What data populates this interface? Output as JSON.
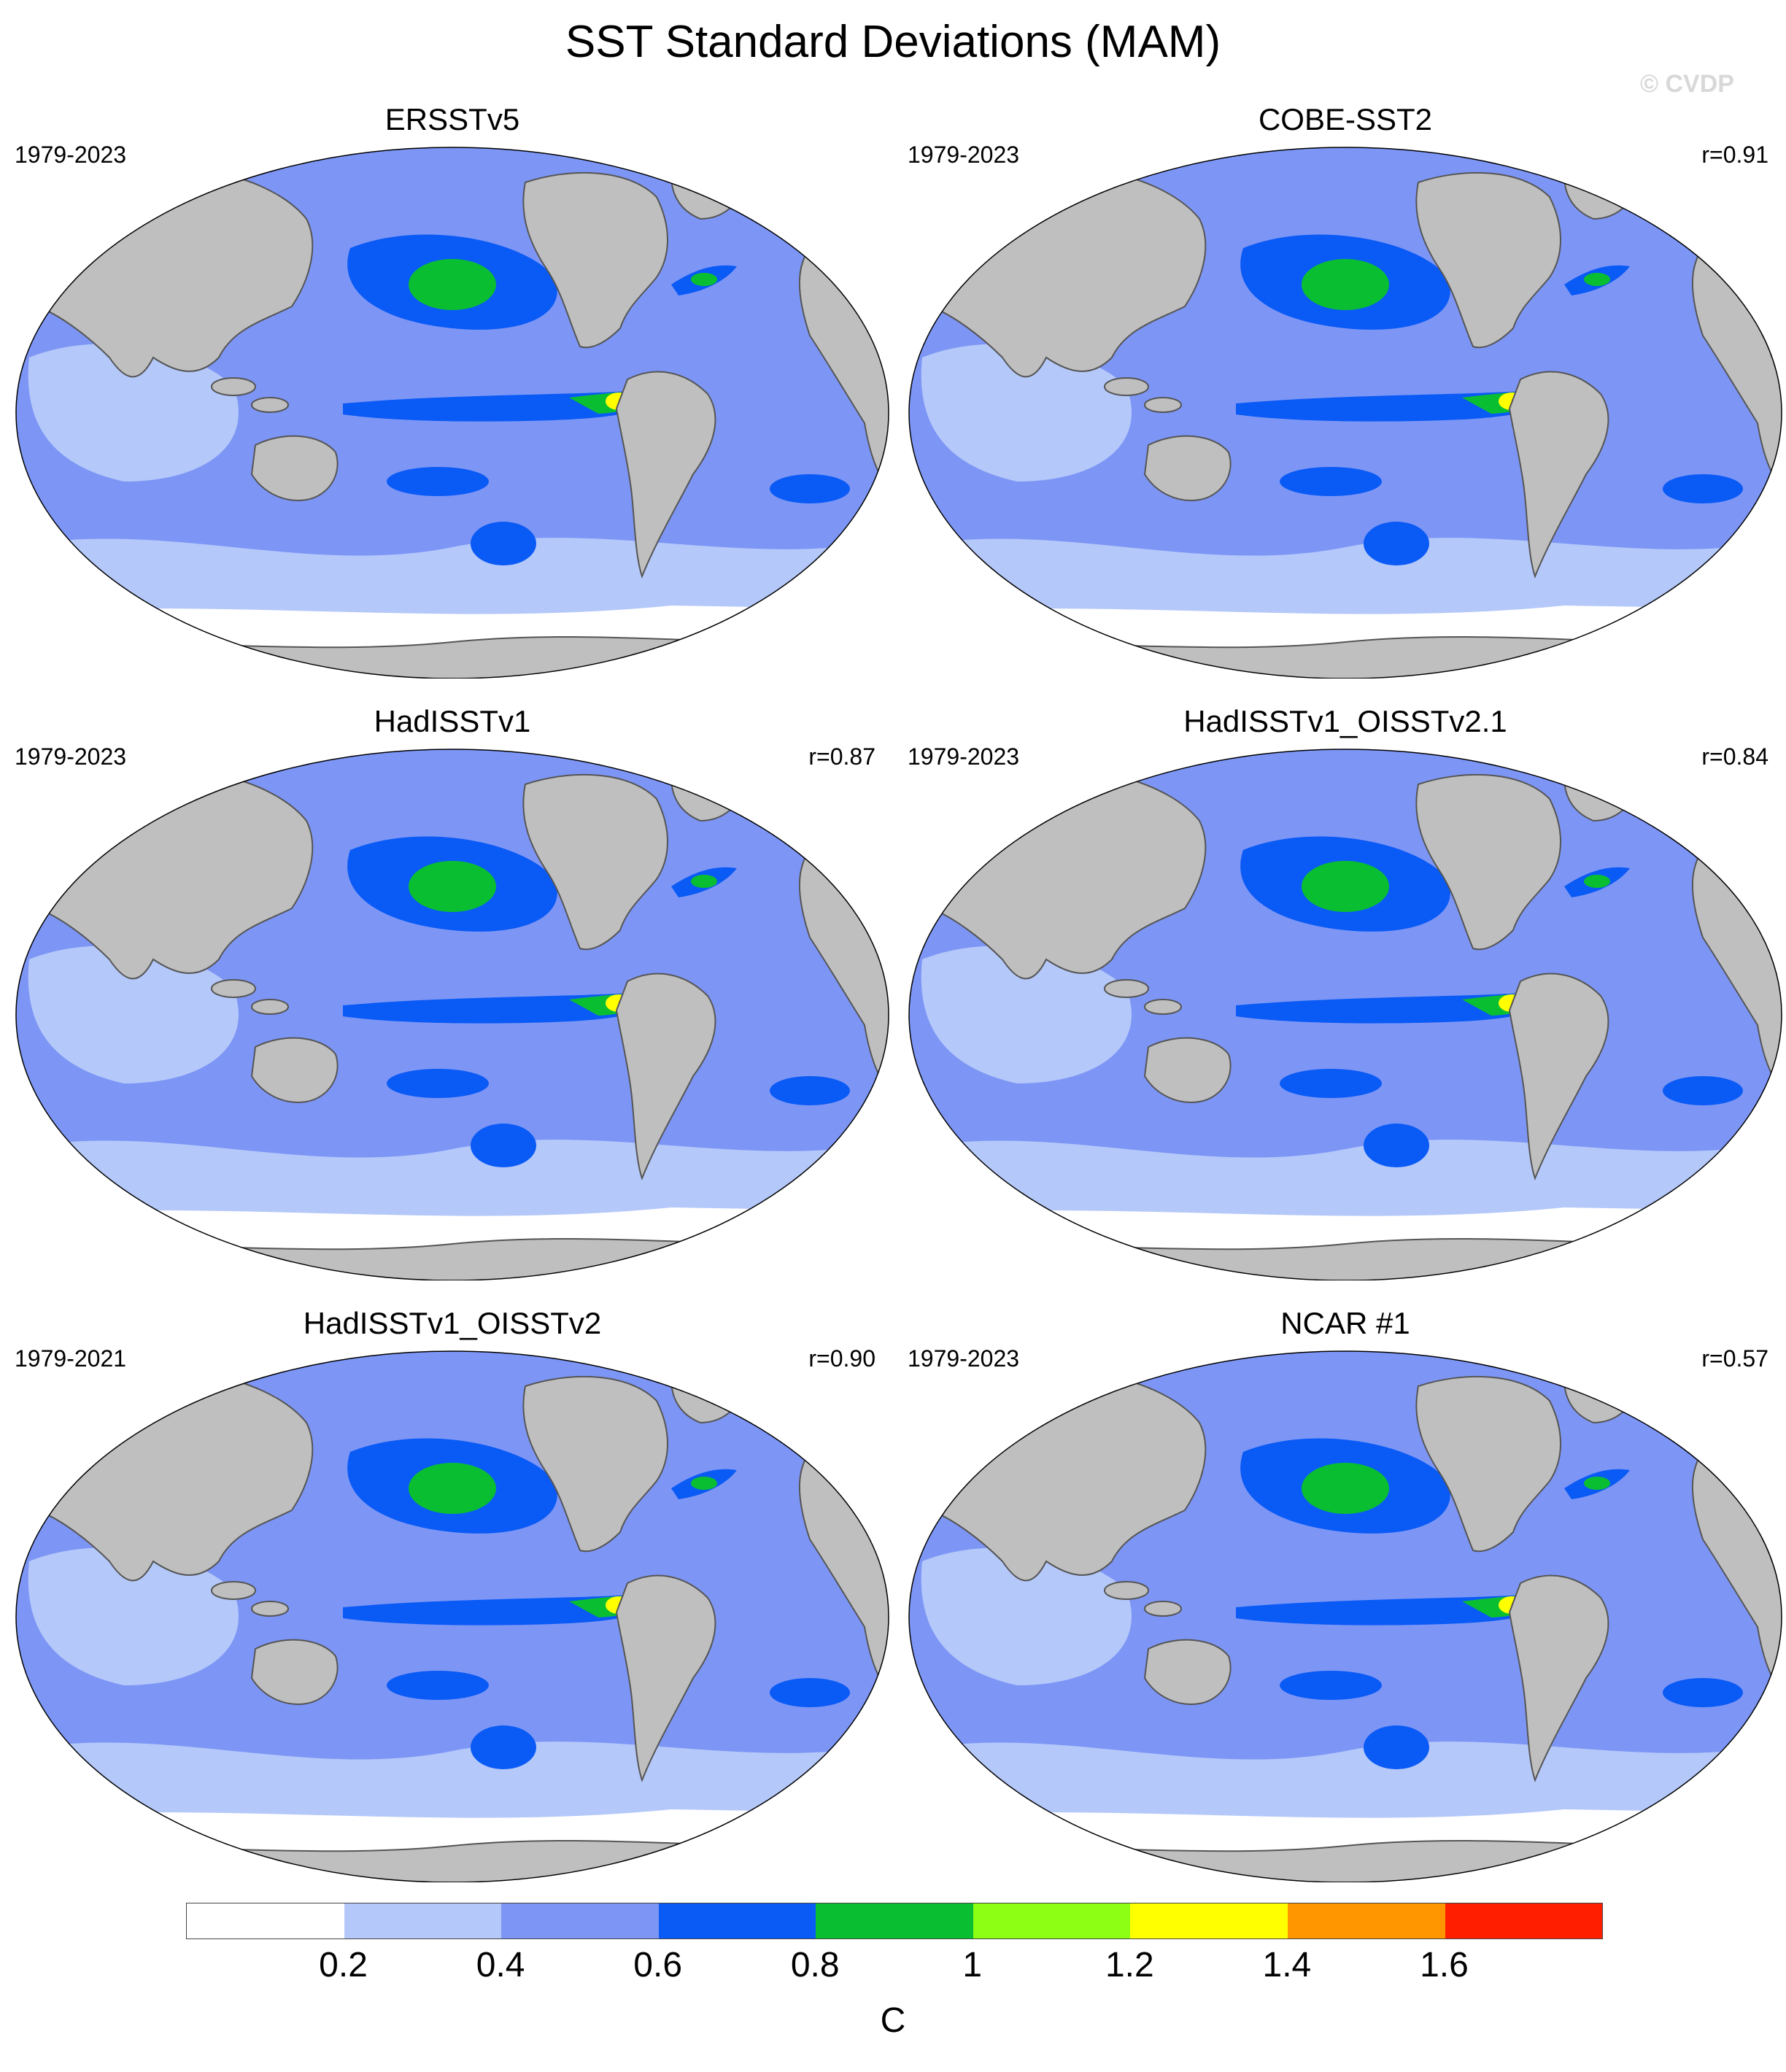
{
  "title": "SST Standard Deviations (MAM)",
  "watermark": "© CVDP",
  "colors": {
    "land": "#bfbfbf",
    "coast": "#555555",
    "levels": [
      "#ffffff",
      "#b4c8fa",
      "#7d96f5",
      "#0a5af5",
      "#0abe32",
      "#8cff14",
      "#ffff00",
      "#ff9600",
      "#ff1e00"
    ]
  },
  "panels": [
    {
      "title": "ERSSTv5",
      "period": "1979-2023",
      "corr": ""
    },
    {
      "title": "COBE-SST2",
      "period": "1979-2023",
      "corr": "r=0.91"
    },
    {
      "title": "HadISSTv1",
      "period": "1979-2023",
      "corr": "r=0.87"
    },
    {
      "title": "HadISSTv1_OISSTv2.1",
      "period": "1979-2023",
      "corr": "r=0.84"
    },
    {
      "title": "HadISSTv1_OISSTv2",
      "period": "1979-2021",
      "corr": "r=0.90"
    },
    {
      "title": "NCAR #1",
      "period": "1979-2023",
      "corr": "r=0.57"
    }
  ],
  "colorbar": {
    "ticks": [
      "0.2",
      "0.4",
      "0.6",
      "0.8",
      "1",
      "1.2",
      "1.4",
      "1.6"
    ],
    "units": "C"
  }
}
